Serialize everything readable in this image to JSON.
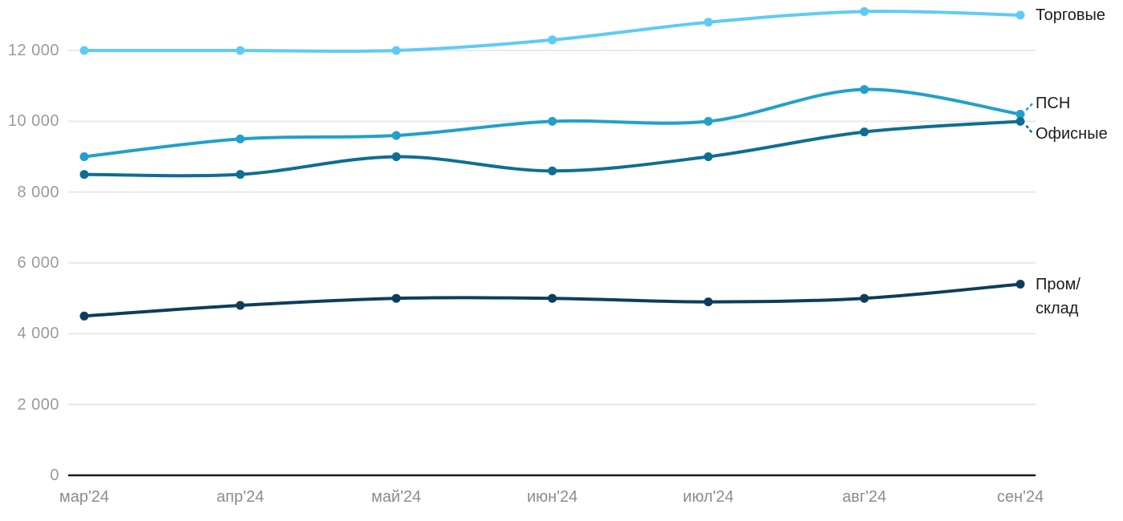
{
  "chart_data": {
    "type": "line",
    "title": "",
    "xlabel": "",
    "ylabel": "",
    "categories": [
      "мар'24",
      "апр'24",
      "май'24",
      "июн'24",
      "июл'24",
      "авг'24",
      "сен'24"
    ],
    "series": [
      {
        "name": "Торговые",
        "end_label": "Торговые",
        "color": "#5fcbf5",
        "values": [
          12000,
          12000,
          12000,
          12300,
          12800,
          13100,
          13000
        ]
      },
      {
        "name": "ПСН",
        "end_label": "ПСН",
        "color": "#22a0cb",
        "values": [
          9000,
          9500,
          9600,
          10000,
          10000,
          10900,
          10200
        ]
      },
      {
        "name": "Офисные",
        "end_label": "Офисные",
        "color": "#0e6e93",
        "values": [
          8500,
          8500,
          9000,
          8600,
          9000,
          9700,
          10000
        ]
      },
      {
        "name": "Пром/склад",
        "end_label": "Пром/\nсклад",
        "color": "#0e3d5c",
        "values": [
          4500,
          4800,
          5000,
          5000,
          4900,
          5000,
          5400
        ]
      }
    ],
    "y_axis": {
      "ticks": [
        0,
        2000,
        4000,
        6000,
        8000,
        10000,
        12000
      ],
      "tick_labels": [
        "0",
        "2 000",
        "4 000",
        "6 000",
        "8 000",
        "10 000",
        "12 000"
      ],
      "min": 0,
      "max_gridline": 12000
    },
    "grid": true,
    "line_style": "smooth",
    "markers": true,
    "legend_position": "right-end-labels"
  },
  "colors": {
    "background": "#ffffff",
    "gridline": "#e6e6e6",
    "axis_line": "#1a1a1a",
    "y_tick_text": "#9b9b9b",
    "x_tick_text": "#8c8c8c",
    "series_label_text": "#1c1c1c"
  }
}
